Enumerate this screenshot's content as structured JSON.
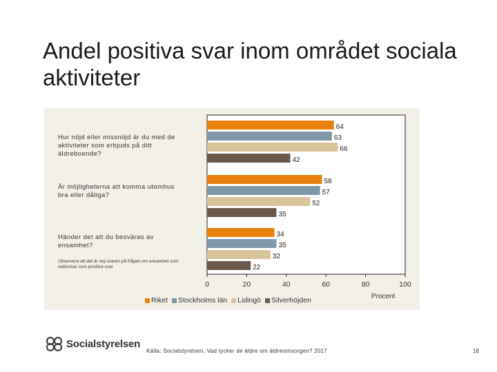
{
  "slide": {
    "title": "Andel positiva svar inom området sociala aktiviteter",
    "source": "Källa: Socialstyrelsen, Vad tycker de äldre om äldreomsorgen? 2017",
    "page_number": "18",
    "logo_text": "Socialstyrelsen"
  },
  "chart_data": {
    "type": "bar",
    "orientation": "horizontal",
    "title": "",
    "xlabel": "Procent",
    "ylabel": "",
    "xlim": [
      0,
      100
    ],
    "xticks": [
      "0",
      "20",
      "40",
      "60",
      "80",
      "100"
    ],
    "categories": [
      "Hur nöjd eller missnöjd är du med de aktiviteter som erbjuds på ditt äldreboende?",
      "Är möjligheterna att komma utomhus bra eller dåliga?",
      "Händer det att du besväras av ensamhet?"
    ],
    "note": "Observera att det är nej-svaren på frågan om ensamhet som redovisas som positiva svar",
    "series": [
      {
        "name": "Riket",
        "color": "#e8820c",
        "values": [
          64,
          58,
          34
        ]
      },
      {
        "name": "Stockholms län",
        "color": "#7f97a8",
        "values": [
          63,
          57,
          35
        ]
      },
      {
        "name": "Lidingö",
        "color": "#d8c59c",
        "values": [
          66,
          52,
          32
        ]
      },
      {
        "name": "Silverhöjden",
        "color": "#6b5a4c",
        "values": [
          42,
          35,
          22
        ]
      }
    ],
    "legend_position": "bottom"
  }
}
